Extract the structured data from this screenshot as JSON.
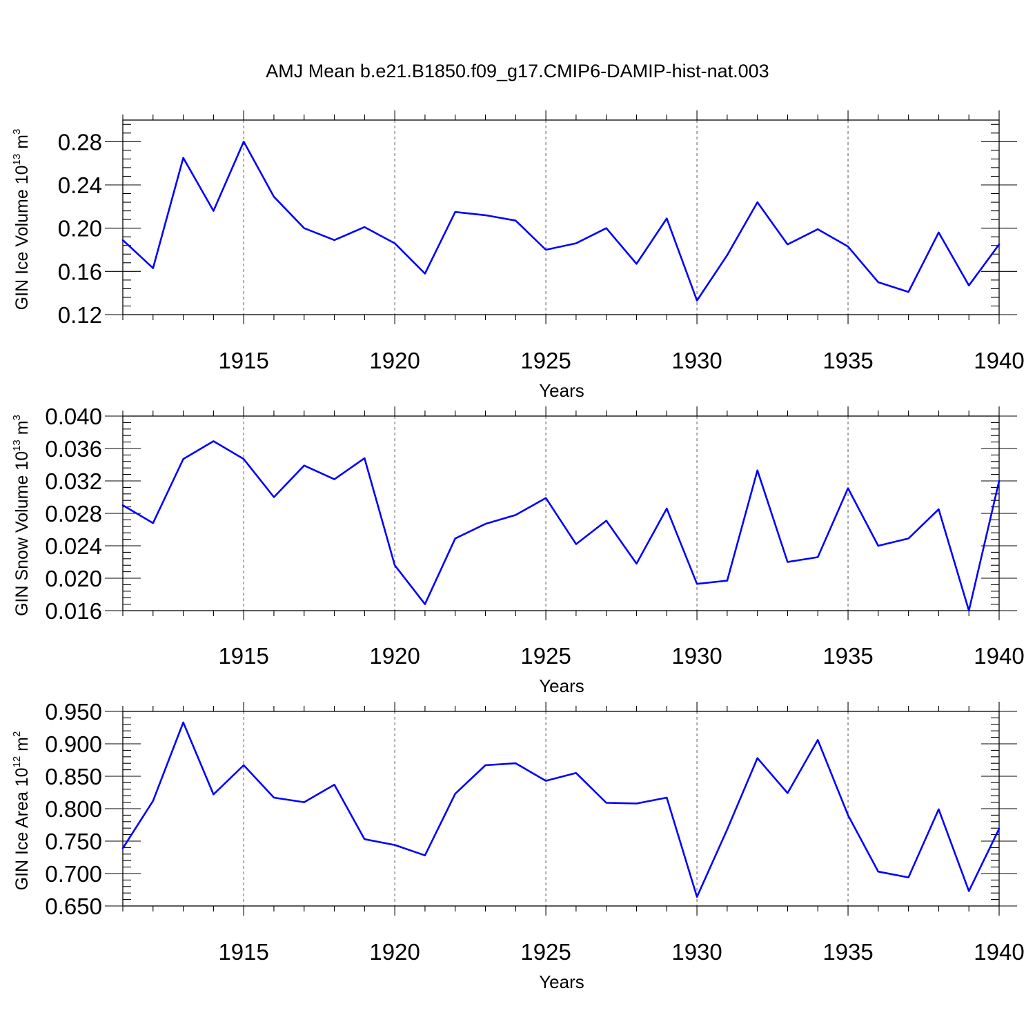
{
  "title": "AMJ Mean b.e21.B1850.f09_g17.CMIP6-DAMIP-hist-nat.003",
  "colors": {
    "line": "#0000ff",
    "axes": "#000000",
    "grid": "#555555"
  },
  "chart_data": [
    {
      "type": "line",
      "ylabel": {
        "base": "GIN Ice Volume 10",
        "exp": "13",
        "unit": " m",
        "unit_exp": "3"
      },
      "xlabel": "Years",
      "xlim": [
        1911,
        1940
      ],
      "ylim": [
        0.12,
        0.3
      ],
      "yticks": [
        0.12,
        0.16,
        0.2,
        0.24,
        0.28
      ],
      "ytick_labels": [
        "0.12",
        "0.16",
        "0.20",
        "0.24",
        "0.28"
      ],
      "xticks": [
        1915,
        1920,
        1925,
        1930,
        1935,
        1940
      ],
      "xtick_labels": [
        "1915",
        "1920",
        "1925",
        "1930",
        "1935",
        "1940"
      ],
      "grid": "vertical dashed at major x ticks",
      "x": [
        1911,
        1912,
        1913,
        1914,
        1915,
        1916,
        1917,
        1918,
        1919,
        1920,
        1921,
        1922,
        1923,
        1924,
        1925,
        1926,
        1927,
        1928,
        1929,
        1930,
        1931,
        1932,
        1933,
        1934,
        1935,
        1936,
        1937,
        1938,
        1939,
        1940
      ],
      "series": [
        {
          "values": [
            0.189,
            0.163,
            0.265,
            0.216,
            0.28,
            0.229,
            0.2,
            0.189,
            0.201,
            0.186,
            0.158,
            0.215,
            0.212,
            0.207,
            0.18,
            0.186,
            0.2,
            0.167,
            0.209,
            0.133,
            0.175,
            0.224,
            0.185,
            0.199,
            0.183,
            0.15,
            0.141,
            0.196,
            0.147,
            0.185
          ]
        }
      ]
    },
    {
      "type": "line",
      "ylabel": {
        "base": "GIN Snow Volume 10",
        "exp": "13",
        "unit": " m",
        "unit_exp": "3"
      },
      "xlabel": "Years",
      "xlim": [
        1911,
        1940
      ],
      "ylim": [
        0.016,
        0.04
      ],
      "yticks": [
        0.016,
        0.02,
        0.024,
        0.028,
        0.032,
        0.036,
        0.04
      ],
      "ytick_labels": [
        "0.016",
        "0.020",
        "0.024",
        "0.028",
        "0.032",
        "0.036",
        "0.040"
      ],
      "xticks": [
        1915,
        1920,
        1925,
        1930,
        1935,
        1940
      ],
      "xtick_labels": [
        "1915",
        "1920",
        "1925",
        "1930",
        "1935",
        "1940"
      ],
      "grid": "vertical dashed at major x ticks",
      "x": [
        1911,
        1912,
        1913,
        1914,
        1915,
        1916,
        1917,
        1918,
        1919,
        1920,
        1921,
        1922,
        1923,
        1924,
        1925,
        1926,
        1927,
        1928,
        1929,
        1930,
        1931,
        1932,
        1933,
        1934,
        1935,
        1936,
        1937,
        1938,
        1939,
        1940
      ],
      "series": [
        {
          "values": [
            0.029,
            0.0268,
            0.0347,
            0.0369,
            0.0347,
            0.03,
            0.0339,
            0.0322,
            0.0348,
            0.0216,
            0.0168,
            0.0249,
            0.0267,
            0.0278,
            0.0299,
            0.0242,
            0.0271,
            0.0218,
            0.0286,
            0.0193,
            0.0197,
            0.0333,
            0.022,
            0.0226,
            0.0311,
            0.024,
            0.0249,
            0.0285,
            0.016,
            0.032
          ]
        }
      ]
    },
    {
      "type": "line",
      "ylabel": {
        "base": "GIN Ice Area 10",
        "exp": "12",
        "unit": " m",
        "unit_exp": "2"
      },
      "xlabel": "Years",
      "xlim": [
        1911,
        1940
      ],
      "ylim": [
        0.65,
        0.95
      ],
      "yticks": [
        0.65,
        0.7,
        0.75,
        0.8,
        0.85,
        0.9,
        0.95
      ],
      "ytick_labels": [
        "0.650",
        "0.700",
        "0.750",
        "0.800",
        "0.850",
        "0.900",
        "0.950"
      ],
      "xticks": [
        1915,
        1920,
        1925,
        1930,
        1935,
        1940
      ],
      "xtick_labels": [
        "1915",
        "1920",
        "1925",
        "1930",
        "1935",
        "1940"
      ],
      "grid": "vertical dashed at major x ticks",
      "x": [
        1911,
        1912,
        1913,
        1914,
        1915,
        1916,
        1917,
        1918,
        1919,
        1920,
        1921,
        1922,
        1923,
        1924,
        1925,
        1926,
        1927,
        1928,
        1929,
        1930,
        1931,
        1932,
        1933,
        1934,
        1935,
        1936,
        1937,
        1938,
        1939,
        1940
      ],
      "series": [
        {
          "values": [
            0.739,
            0.812,
            0.933,
            0.822,
            0.867,
            0.817,
            0.81,
            0.837,
            0.753,
            0.744,
            0.728,
            0.823,
            0.867,
            0.87,
            0.843,
            0.855,
            0.809,
            0.808,
            0.817,
            0.664,
            0.768,
            0.878,
            0.824,
            0.906,
            0.79,
            0.703,
            0.694,
            0.799,
            0.673,
            0.769
          ]
        }
      ]
    }
  ]
}
